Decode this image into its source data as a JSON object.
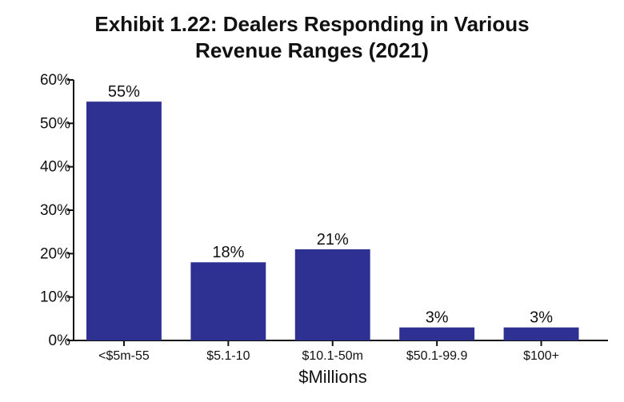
{
  "chart_data": {
    "type": "bar",
    "title_line1": "Exhibit 1.22: Dealers Responding in Various",
    "title_line2": "Revenue Ranges (2021)",
    "xlabel": "$Millions",
    "ylabel": "",
    "categories": [
      "<$5m-55",
      "$5.1-10",
      "$10.1-50m",
      "$50.1-99.9",
      "$100+"
    ],
    "values": [
      55,
      18,
      21,
      3,
      3
    ],
    "data_labels": [
      "55%",
      "18%",
      "21%",
      "3%",
      "3%"
    ],
    "ylim": [
      0,
      60
    ],
    "yticks": [
      0,
      10,
      20,
      30,
      40,
      50,
      60
    ],
    "ytick_labels": [
      "0%",
      "10%",
      "20%",
      "30%",
      "40%",
      "50%",
      "60%"
    ],
    "bar_color": "#2e3192",
    "grid": false,
    "legend": "none"
  }
}
